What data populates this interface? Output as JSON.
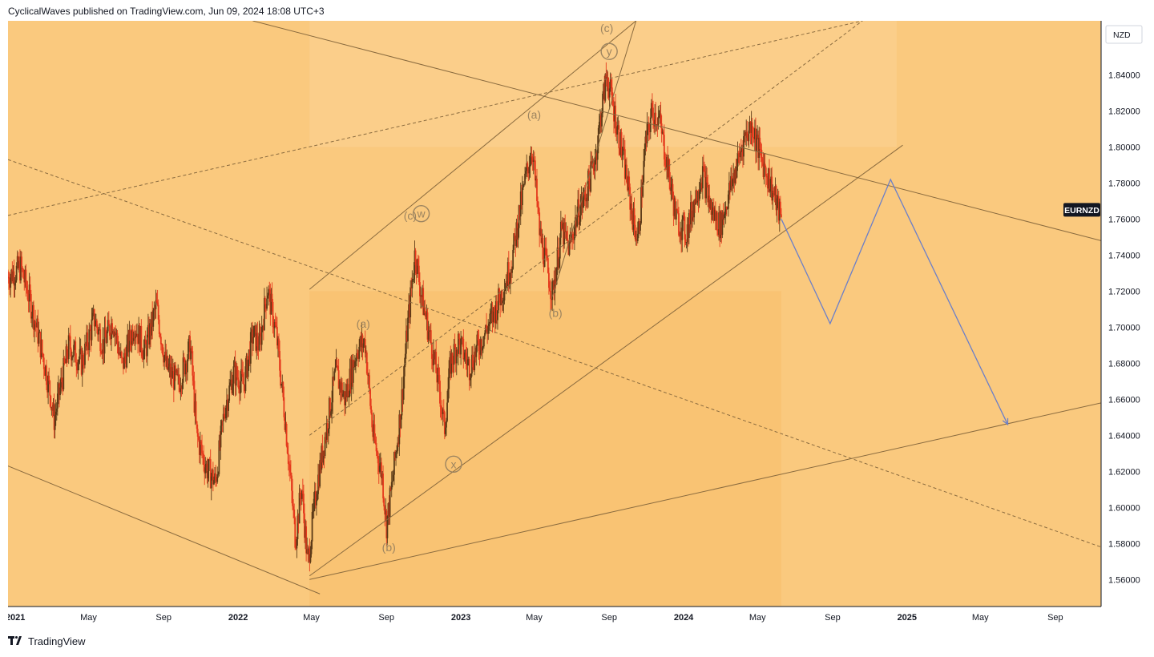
{
  "header": {
    "attribution": "CyclicalWaves published on TradingView.com, Jun 09, 2024 18:08 UTC+3"
  },
  "footer": {
    "brand": "TradingView",
    "logo_icon": "tradingview-logo-icon"
  },
  "colors": {
    "background": "#fac97e",
    "zone_darker": "#f8be6a",
    "zone_lighter": "#fbd194",
    "candle_up": "#5b3a17",
    "candle_down": "#e53a1d",
    "trendline": "#8a6b3f",
    "wave_label": "#9c8460",
    "projection": "#6b7fc9",
    "axis_text": "#131722"
  },
  "chart_data": {
    "type": "candlestick",
    "symbol": "EURNZD",
    "currency": "NZD",
    "current_price_approx": 1.76,
    "ylim": [
      1.545,
      1.87
    ],
    "yticks": [
      "1.84000",
      "1.82000",
      "1.80000",
      "1.78000",
      "1.76000",
      "1.74000",
      "1.72000",
      "1.70000",
      "1.68000",
      "1.66000",
      "1.64000",
      "1.62000",
      "1.60000",
      "1.58000",
      "1.56000"
    ],
    "xlim": [
      "2020-12-20",
      "2025-11-15"
    ],
    "xticks": [
      {
        "date": "2021-01-01",
        "label": "2021",
        "bold": true
      },
      {
        "date": "2021-05-01",
        "label": "May",
        "bold": false
      },
      {
        "date": "2021-09-01",
        "label": "Sep",
        "bold": false
      },
      {
        "date": "2022-01-01",
        "label": "2022",
        "bold": true
      },
      {
        "date": "2022-05-01",
        "label": "May",
        "bold": false
      },
      {
        "date": "2022-09-01",
        "label": "Sep",
        "bold": false
      },
      {
        "date": "2023-01-01",
        "label": "2023",
        "bold": true
      },
      {
        "date": "2023-05-01",
        "label": "May",
        "bold": false
      },
      {
        "date": "2023-09-01",
        "label": "Sep",
        "bold": false
      },
      {
        "date": "2024-01-01",
        "label": "2024",
        "bold": true
      },
      {
        "date": "2024-05-01",
        "label": "May",
        "bold": false
      },
      {
        "date": "2024-09-01",
        "label": "Sep",
        "bold": false
      },
      {
        "date": "2025-01-01",
        "label": "2025",
        "bold": true
      },
      {
        "date": "2025-05-01",
        "label": "May",
        "bold": false
      },
      {
        "date": "2025-09-01",
        "label": "Sep",
        "bold": false
      }
    ],
    "price_path": [
      [
        "2020-12-20",
        1.728
      ],
      [
        "2021-01-10",
        1.733
      ],
      [
        "2021-01-25",
        1.715
      ],
      [
        "2021-02-08",
        1.695
      ],
      [
        "2021-02-20",
        1.676
      ],
      [
        "2021-03-01",
        1.66
      ],
      [
        "2021-03-05",
        1.648
      ],
      [
        "2021-03-15",
        1.665
      ],
      [
        "2021-03-30",
        1.69
      ],
      [
        "2021-04-20",
        1.68
      ],
      [
        "2021-05-10",
        1.705
      ],
      [
        "2021-05-25",
        1.69
      ],
      [
        "2021-06-10",
        1.704
      ],
      [
        "2021-06-25",
        1.678
      ],
      [
        "2021-07-15",
        1.702
      ],
      [
        "2021-08-01",
        1.686
      ],
      [
        "2021-08-20",
        1.712
      ],
      [
        "2021-09-05",
        1.678
      ],
      [
        "2021-09-25",
        1.668
      ],
      [
        "2021-10-15",
        1.69
      ],
      [
        "2021-10-25",
        1.64
      ],
      [
        "2021-11-10",
        1.622
      ],
      [
        "2021-11-25",
        1.614
      ],
      [
        "2021-12-10",
        1.655
      ],
      [
        "2021-12-25",
        1.675
      ],
      [
        "2022-01-10",
        1.668
      ],
      [
        "2022-01-25",
        1.696
      ],
      [
        "2022-02-05",
        1.69
      ],
      [
        "2022-02-18",
        1.722
      ],
      [
        "2022-03-05",
        1.695
      ],
      [
        "2022-03-20",
        1.646
      ],
      [
        "2022-04-05",
        1.582
      ],
      [
        "2022-04-15",
        1.612
      ],
      [
        "2022-04-25",
        1.568
      ],
      [
        "2022-05-10",
        1.612
      ],
      [
        "2022-05-25",
        1.642
      ],
      [
        "2022-06-10",
        1.675
      ],
      [
        "2022-06-25",
        1.66
      ],
      [
        "2022-07-15",
        1.688
      ],
      [
        "2022-07-28",
        1.692
      ],
      [
        "2022-08-10",
        1.64
      ],
      [
        "2022-08-25",
        1.618
      ],
      [
        "2022-09-01",
        1.59
      ],
      [
        "2022-09-10",
        1.612
      ],
      [
        "2022-09-25",
        1.655
      ],
      [
        "2022-10-05",
        1.698
      ],
      [
        "2022-10-18",
        1.742
      ],
      [
        "2022-10-28",
        1.718
      ],
      [
        "2022-11-15",
        1.688
      ],
      [
        "2022-11-28",
        1.663
      ],
      [
        "2022-12-05",
        1.643
      ],
      [
        "2022-12-15",
        1.68
      ],
      [
        "2022-12-28",
        1.692
      ],
      [
        "2023-01-15",
        1.678
      ],
      [
        "2023-01-30",
        1.69
      ],
      [
        "2023-02-20",
        1.704
      ],
      [
        "2023-03-10",
        1.72
      ],
      [
        "2023-03-25",
        1.736
      ],
      [
        "2023-04-05",
        1.76
      ],
      [
        "2023-04-20",
        1.788
      ],
      [
        "2023-04-28",
        1.8
      ],
      [
        "2023-05-10",
        1.752
      ],
      [
        "2023-05-25",
        1.728
      ],
      [
        "2023-05-31",
        1.718
      ],
      [
        "2023-06-15",
        1.754
      ],
      [
        "2023-06-28",
        1.744
      ],
      [
        "2023-07-10",
        1.762
      ],
      [
        "2023-07-25",
        1.774
      ],
      [
        "2023-08-10",
        1.796
      ],
      [
        "2023-08-20",
        1.822
      ],
      [
        "2023-08-28",
        1.84
      ],
      [
        "2023-09-10",
        1.818
      ],
      [
        "2023-09-25",
        1.792
      ],
      [
        "2023-10-10",
        1.76
      ],
      [
        "2023-10-18",
        1.748
      ],
      [
        "2023-10-30",
        1.8
      ],
      [
        "2023-11-10",
        1.82
      ],
      [
        "2023-11-22",
        1.815
      ],
      [
        "2023-12-05",
        1.79
      ],
      [
        "2023-12-20",
        1.76
      ],
      [
        "2024-01-05",
        1.752
      ],
      [
        "2024-01-20",
        1.772
      ],
      [
        "2024-02-01",
        1.786
      ],
      [
        "2024-02-15",
        1.765
      ],
      [
        "2024-03-01",
        1.756
      ],
      [
        "2024-03-15",
        1.774
      ],
      [
        "2024-03-30",
        1.792
      ],
      [
        "2024-04-10",
        1.806
      ],
      [
        "2024-04-22",
        1.812
      ],
      [
        "2024-05-05",
        1.796
      ],
      [
        "2024-05-20",
        1.782
      ],
      [
        "2024-06-09",
        1.76
      ]
    ],
    "projection": [
      [
        "2024-06-09",
        1.76
      ],
      [
        "2024-08-28",
        1.702
      ],
      [
        "2024-12-05",
        1.782
      ],
      [
        "2025-06-15",
        1.646
      ]
    ],
    "trendlines": [
      {
        "from": [
          "2022-04-28",
          1.56
        ],
        "to": [
          "2025-11-15",
          1.658
        ],
        "style": "solid"
      },
      {
        "from": [
          "2022-04-28",
          1.562
        ],
        "to": [
          "2024-12-25",
          1.801
        ],
        "style": "solid"
      },
      {
        "from": [
          "2022-04-28",
          1.721
        ],
        "to": [
          "2023-10-15",
          1.87
        ],
        "style": "solid"
      },
      {
        "from": [
          "2022-01-25",
          1.87
        ],
        "to": [
          "2025-11-15",
          1.748
        ],
        "style": "solid"
      },
      {
        "from": [
          "2020-12-20",
          1.623
        ],
        "to": [
          "2022-05-15",
          1.552
        ],
        "style": "solid"
      },
      {
        "from": [
          "2020-12-20",
          1.762
        ],
        "to": [
          "2024-10-20",
          1.87
        ],
        "style": "dashed"
      },
      {
        "from": [
          "2020-12-20",
          1.793
        ],
        "to": [
          "2025-11-15",
          1.578
        ],
        "style": "dashed"
      },
      {
        "from": [
          "2022-04-28",
          1.64
        ],
        "to": [
          "2024-10-20",
          1.87
        ],
        "style": "dashed"
      },
      {
        "from": [
          "2023-05-31",
          1.717
        ],
        "to": [
          "2023-10-15",
          1.87
        ],
        "style": "solid"
      }
    ],
    "zones": [
      {
        "from": "2022-04-28",
        "to": "2024-12-15",
        "y": [
          1.8,
          1.87
        ],
        "fill": "lighter"
      },
      {
        "from": "2022-04-28",
        "to": "2024-06-09",
        "y": [
          1.545,
          1.72
        ],
        "fill": "darker"
      }
    ],
    "wave_labels": [
      {
        "text": "(a)",
        "date": "2022-07-25",
        "price": 1.702,
        "circled": false
      },
      {
        "text": "(b)",
        "date": "2022-09-05",
        "price": 1.578,
        "circled": false
      },
      {
        "text": "(c)",
        "date": "2022-10-10",
        "price": 1.762,
        "circled": false
      },
      {
        "text": "w",
        "date": "2022-10-28",
        "price": 1.763,
        "circled": true
      },
      {
        "text": "x",
        "date": "2022-12-20",
        "price": 1.624,
        "circled": true
      },
      {
        "text": "(a)",
        "date": "2023-05-01",
        "price": 1.818,
        "circled": false
      },
      {
        "text": "(b)",
        "date": "2023-06-05",
        "price": 1.708,
        "circled": false
      },
      {
        "text": "(c)",
        "date": "2023-08-28",
        "price": 1.866,
        "circled": false
      },
      {
        "text": "y",
        "date": "2023-09-01",
        "price": 1.853,
        "circled": true
      }
    ]
  }
}
